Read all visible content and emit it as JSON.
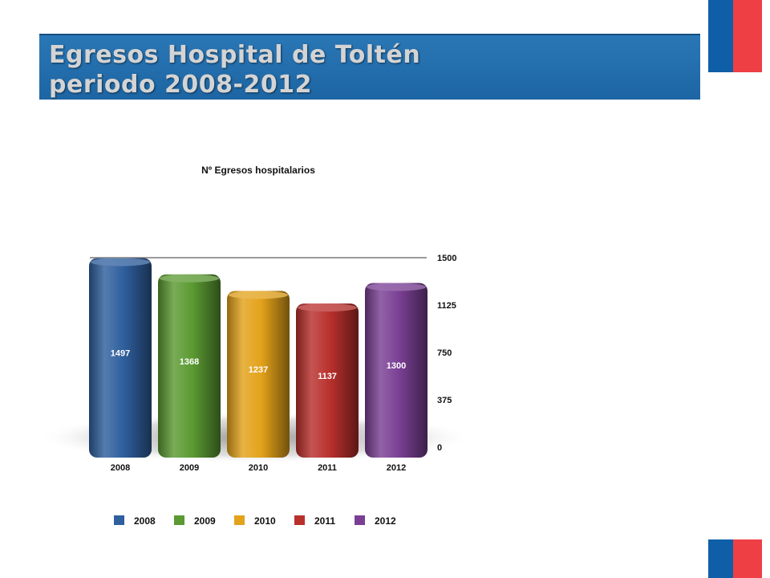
{
  "slide": {
    "title_line1": "Egresos Hospital de Toltén",
    "title_line2": "periodo 2008-2012",
    "flag_colors": {
      "blue": "#0e5fa8",
      "red": "#ee3f45"
    }
  },
  "chart_data": {
    "type": "bar",
    "title": "Nº Egresos hospitalarios",
    "categories": [
      "2008",
      "2009",
      "2010",
      "2011",
      "2012"
    ],
    "values": [
      1497,
      1368,
      1237,
      1137,
      1300
    ],
    "colors": [
      "#2f5f9e",
      "#5b9a32",
      "#e3a21a",
      "#b8302c",
      "#7a3f94"
    ],
    "ylim": [
      0,
      1500
    ],
    "yticks": [
      0,
      375,
      750,
      1125,
      1500
    ],
    "y_axis_side": "right",
    "legend": [
      "2008",
      "2009",
      "2010",
      "2011",
      "2012"
    ],
    "legend_position": "bottom",
    "data_labels": true
  }
}
